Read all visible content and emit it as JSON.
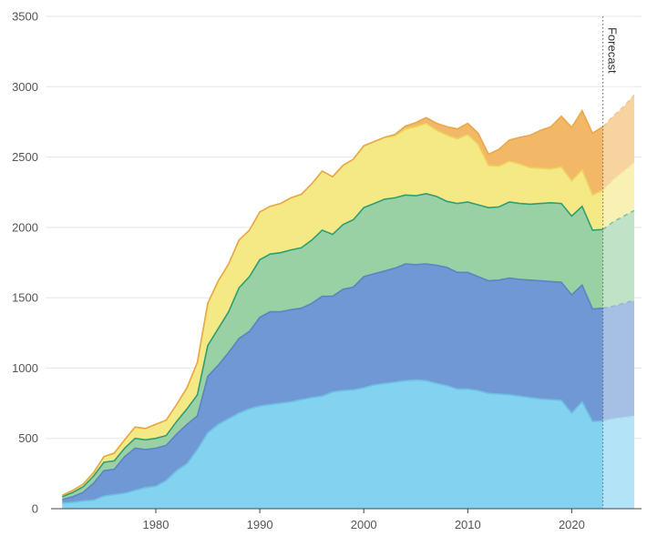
{
  "chart_data": {
    "type": "area",
    "stacked": true,
    "grid": true,
    "ylim": [
      0,
      3500
    ],
    "xlim": [
      1970,
      2026
    ],
    "yticks": [
      "0",
      "500",
      "1000",
      "1500",
      "2000",
      "2500",
      "3000",
      "3500"
    ],
    "xticks": [
      "1980",
      "1990",
      "2000",
      "2010",
      "2020"
    ],
    "forecast_label": "Forecast",
    "forecast_start": 2023,
    "x": [
      1971,
      1972,
      1973,
      1974,
      1975,
      1976,
      1977,
      1978,
      1979,
      1980,
      1981,
      1982,
      1983,
      1984,
      1985,
      1986,
      1987,
      1988,
      1989,
      1990,
      1991,
      1992,
      1993,
      1994,
      1995,
      1996,
      1997,
      1998,
      1999,
      2000,
      2001,
      2002,
      2003,
      2004,
      2005,
      2006,
      2007,
      2008,
      2009,
      2010,
      2011,
      2012,
      2013,
      2014,
      2015,
      2016,
      2017,
      2018,
      2019,
      2020,
      2021,
      2022,
      2023,
      2024,
      2025,
      2026
    ],
    "series": [
      {
        "color": "#83d2f0",
        "values": [
          40,
          45,
          55,
          60,
          90,
          100,
          110,
          130,
          150,
          160,
          200,
          270,
          320,
          420,
          540,
          600,
          640,
          680,
          710,
          730,
          740,
          750,
          760,
          775,
          790,
          800,
          830,
          840,
          845,
          860,
          880,
          890,
          900,
          910,
          915,
          910,
          890,
          875,
          850,
          850,
          840,
          820,
          815,
          810,
          800,
          790,
          780,
          775,
          770,
          680,
          760,
          620,
          625,
          640,
          650,
          660
        ]
      },
      {
        "color": "#7098d4",
        "values": [
          25,
          40,
          60,
          120,
          180,
          180,
          260,
          300,
          270,
          270,
          250,
          260,
          280,
          240,
          400,
          420,
          470,
          530,
          550,
          630,
          660,
          650,
          655,
          650,
          670,
          710,
          680,
          720,
          730,
          790,
          790,
          800,
          810,
          830,
          820,
          830,
          840,
          840,
          830,
          830,
          810,
          800,
          810,
          830,
          830,
          835,
          840,
          840,
          840,
          840,
          830,
          800,
          800,
          800,
          810,
          820
        ]
      },
      {
        "color": "#99d1a4",
        "values": [
          20,
          30,
          40,
          50,
          60,
          60,
          60,
          70,
          70,
          70,
          70,
          90,
          110,
          150,
          220,
          260,
          290,
          360,
          390,
          410,
          410,
          420,
          425,
          430,
          450,
          470,
          440,
          460,
          480,
          490,
          500,
          510,
          500,
          490,
          490,
          500,
          490,
          470,
          490,
          500,
          510,
          520,
          520,
          540,
          540,
          540,
          550,
          560,
          560,
          560,
          560,
          560,
          560,
          600,
          620,
          640
        ]
      },
      {
        "color": "#f5e986",
        "values": [
          10,
          15,
          20,
          25,
          40,
          55,
          60,
          80,
          80,
          100,
          110,
          120,
          150,
          230,
          300,
          340,
          340,
          340,
          330,
          340,
          340,
          350,
          370,
          380,
          400,
          420,
          410,
          420,
          430,
          440,
          440,
          440,
          440,
          470,
          490,
          500,
          470,
          470,
          460,
          480,
          430,
          300,
          290,
          290,
          280,
          260,
          250,
          240,
          260,
          250,
          260,
          250,
          280,
          300,
          320,
          340
        ]
      },
      {
        "color": "#f3b867",
        "values": [
          0,
          0,
          0,
          0,
          0,
          0,
          0,
          0,
          0,
          0,
          0,
          0,
          0,
          0,
          0,
          0,
          0,
          0,
          0,
          0,
          0,
          0,
          0,
          0,
          0,
          0,
          0,
          0,
          0,
          0,
          0,
          0,
          10,
          20,
          30,
          40,
          50,
          60,
          70,
          80,
          80,
          80,
          120,
          150,
          190,
          230,
          270,
          300,
          360,
          380,
          420,
          440,
          450,
          450,
          460,
          480
        ]
      }
    ]
  }
}
